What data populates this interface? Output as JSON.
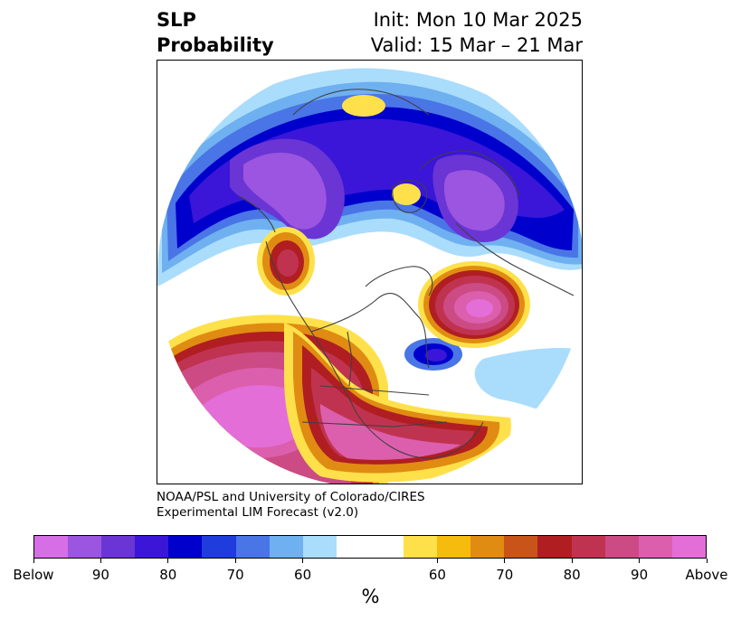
{
  "title": {
    "left_line1": "SLP",
    "left_line2": "Probability",
    "right_line1": "Init: Mon 10 Mar 2025",
    "right_line2": "Valid: 15 Mar – 21 Mar"
  },
  "credit": {
    "line1": "NOAA/PSL and University of Colorado/CIRES",
    "line2": "Experimental LIM Forecast (v2.0)"
  },
  "colorbar": {
    "colors": [
      "#d66ee6",
      "#9b55e0",
      "#6a35d4",
      "#3b16d8",
      "#0000cc",
      "#1f3ddc",
      "#4a75e6",
      "#6fb0f0",
      "#aadcfc",
      "#ffffff",
      "#ffffff",
      "#fee14a",
      "#f5bb0d",
      "#e08c12",
      "#c8541a",
      "#b01e22",
      "#c03350",
      "#cc4b85",
      "#dc5fad",
      "#e46ed8"
    ],
    "ticks": [
      {
        "label": "Below",
        "idx": 0
      },
      {
        "label": "90",
        "idx": 2
      },
      {
        "label": "80",
        "idx": 4
      },
      {
        "label": "70",
        "idx": 6
      },
      {
        "label": "60",
        "idx": 8
      },
      {
        "label": "60",
        "idx": 12
      },
      {
        "label": "70",
        "idx": 14
      },
      {
        "label": "80",
        "idx": 16
      },
      {
        "label": "90",
        "idx": 18
      },
      {
        "label": "Above",
        "idx": 20
      }
    ],
    "unit_label": "%"
  },
  "colors": {
    "land_outline": "#404040",
    "frame": "#000000"
  }
}
